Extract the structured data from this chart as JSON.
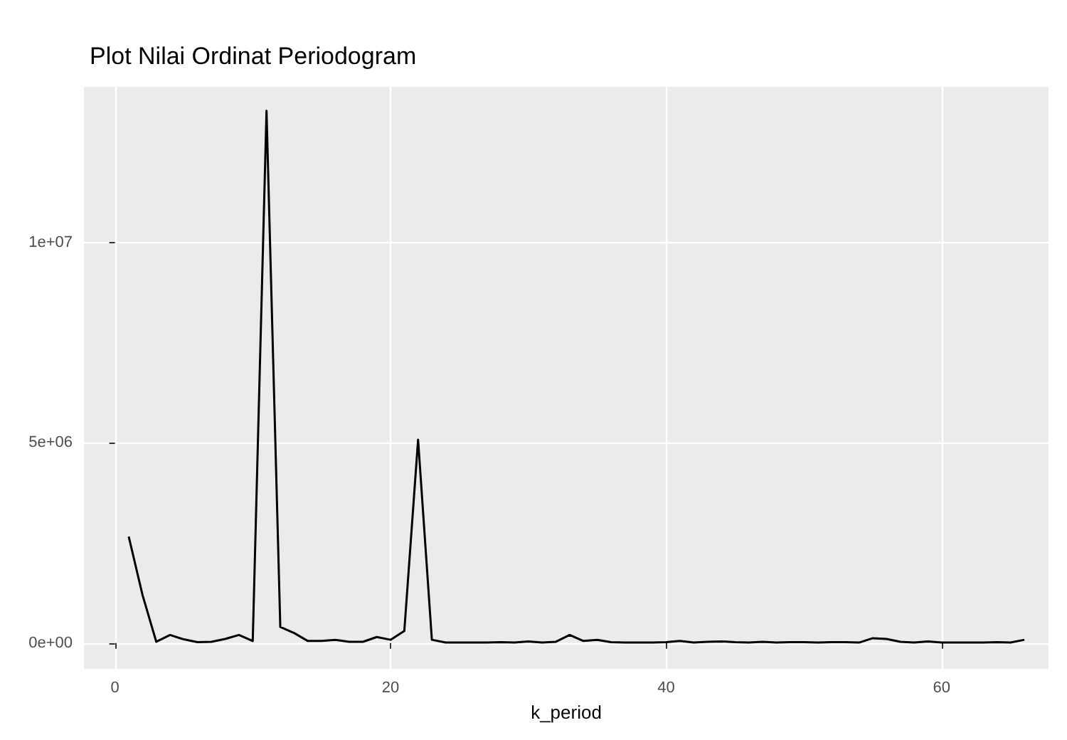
{
  "chart_data": {
    "type": "line",
    "title": "Plot Nilai Ordinat Periodogram",
    "xlabel": "k_period",
    "x": [
      1,
      2,
      3,
      4,
      5,
      6,
      7,
      8,
      9,
      10,
      11,
      12,
      13,
      14,
      15,
      16,
      17,
      18,
      19,
      20,
      21,
      22,
      23,
      24,
      25,
      26,
      27,
      28,
      29,
      30,
      31,
      32,
      33,
      34,
      35,
      36,
      37,
      38,
      39,
      40,
      41,
      42,
      43,
      44,
      45,
      46,
      47,
      48,
      49,
      50,
      51,
      52,
      53,
      54,
      55,
      56,
      57,
      58,
      59,
      60,
      61,
      62,
      63,
      64,
      65,
      66
    ],
    "series": [
      {
        "color": "#000000",
        "values": [
          2660000,
          1200000,
          30000,
          200000,
          90000,
          20000,
          30000,
          100000,
          200000,
          50000,
          13300000,
          400000,
          250000,
          50000,
          50000,
          80000,
          30000,
          30000,
          150000,
          80000,
          300000,
          5080000,
          80000,
          10000,
          10000,
          10000,
          10000,
          20000,
          10000,
          40000,
          10000,
          30000,
          200000,
          50000,
          80000,
          20000,
          10000,
          10000,
          10000,
          20000,
          50000,
          10000,
          30000,
          40000,
          20000,
          10000,
          30000,
          10000,
          20000,
          20000,
          10000,
          20000,
          20000,
          10000,
          120000,
          100000,
          30000,
          10000,
          40000,
          10000,
          10000,
          10000,
          10000,
          20000,
          10000,
          80000
        ]
      }
    ],
    "xlim": [
      -2.25,
      67.75
    ],
    "ylim": [
      -650000,
      13900000
    ],
    "xticks": [
      0,
      20,
      40,
      60
    ],
    "yticks": [
      {
        "value": 0,
        "label": "0e+00"
      },
      {
        "value": 5000000,
        "label": "5e+06"
      },
      {
        "value": 10000000,
        "label": "1e+07"
      }
    ],
    "grid": true,
    "marker": "none",
    "line_style": "solid"
  }
}
